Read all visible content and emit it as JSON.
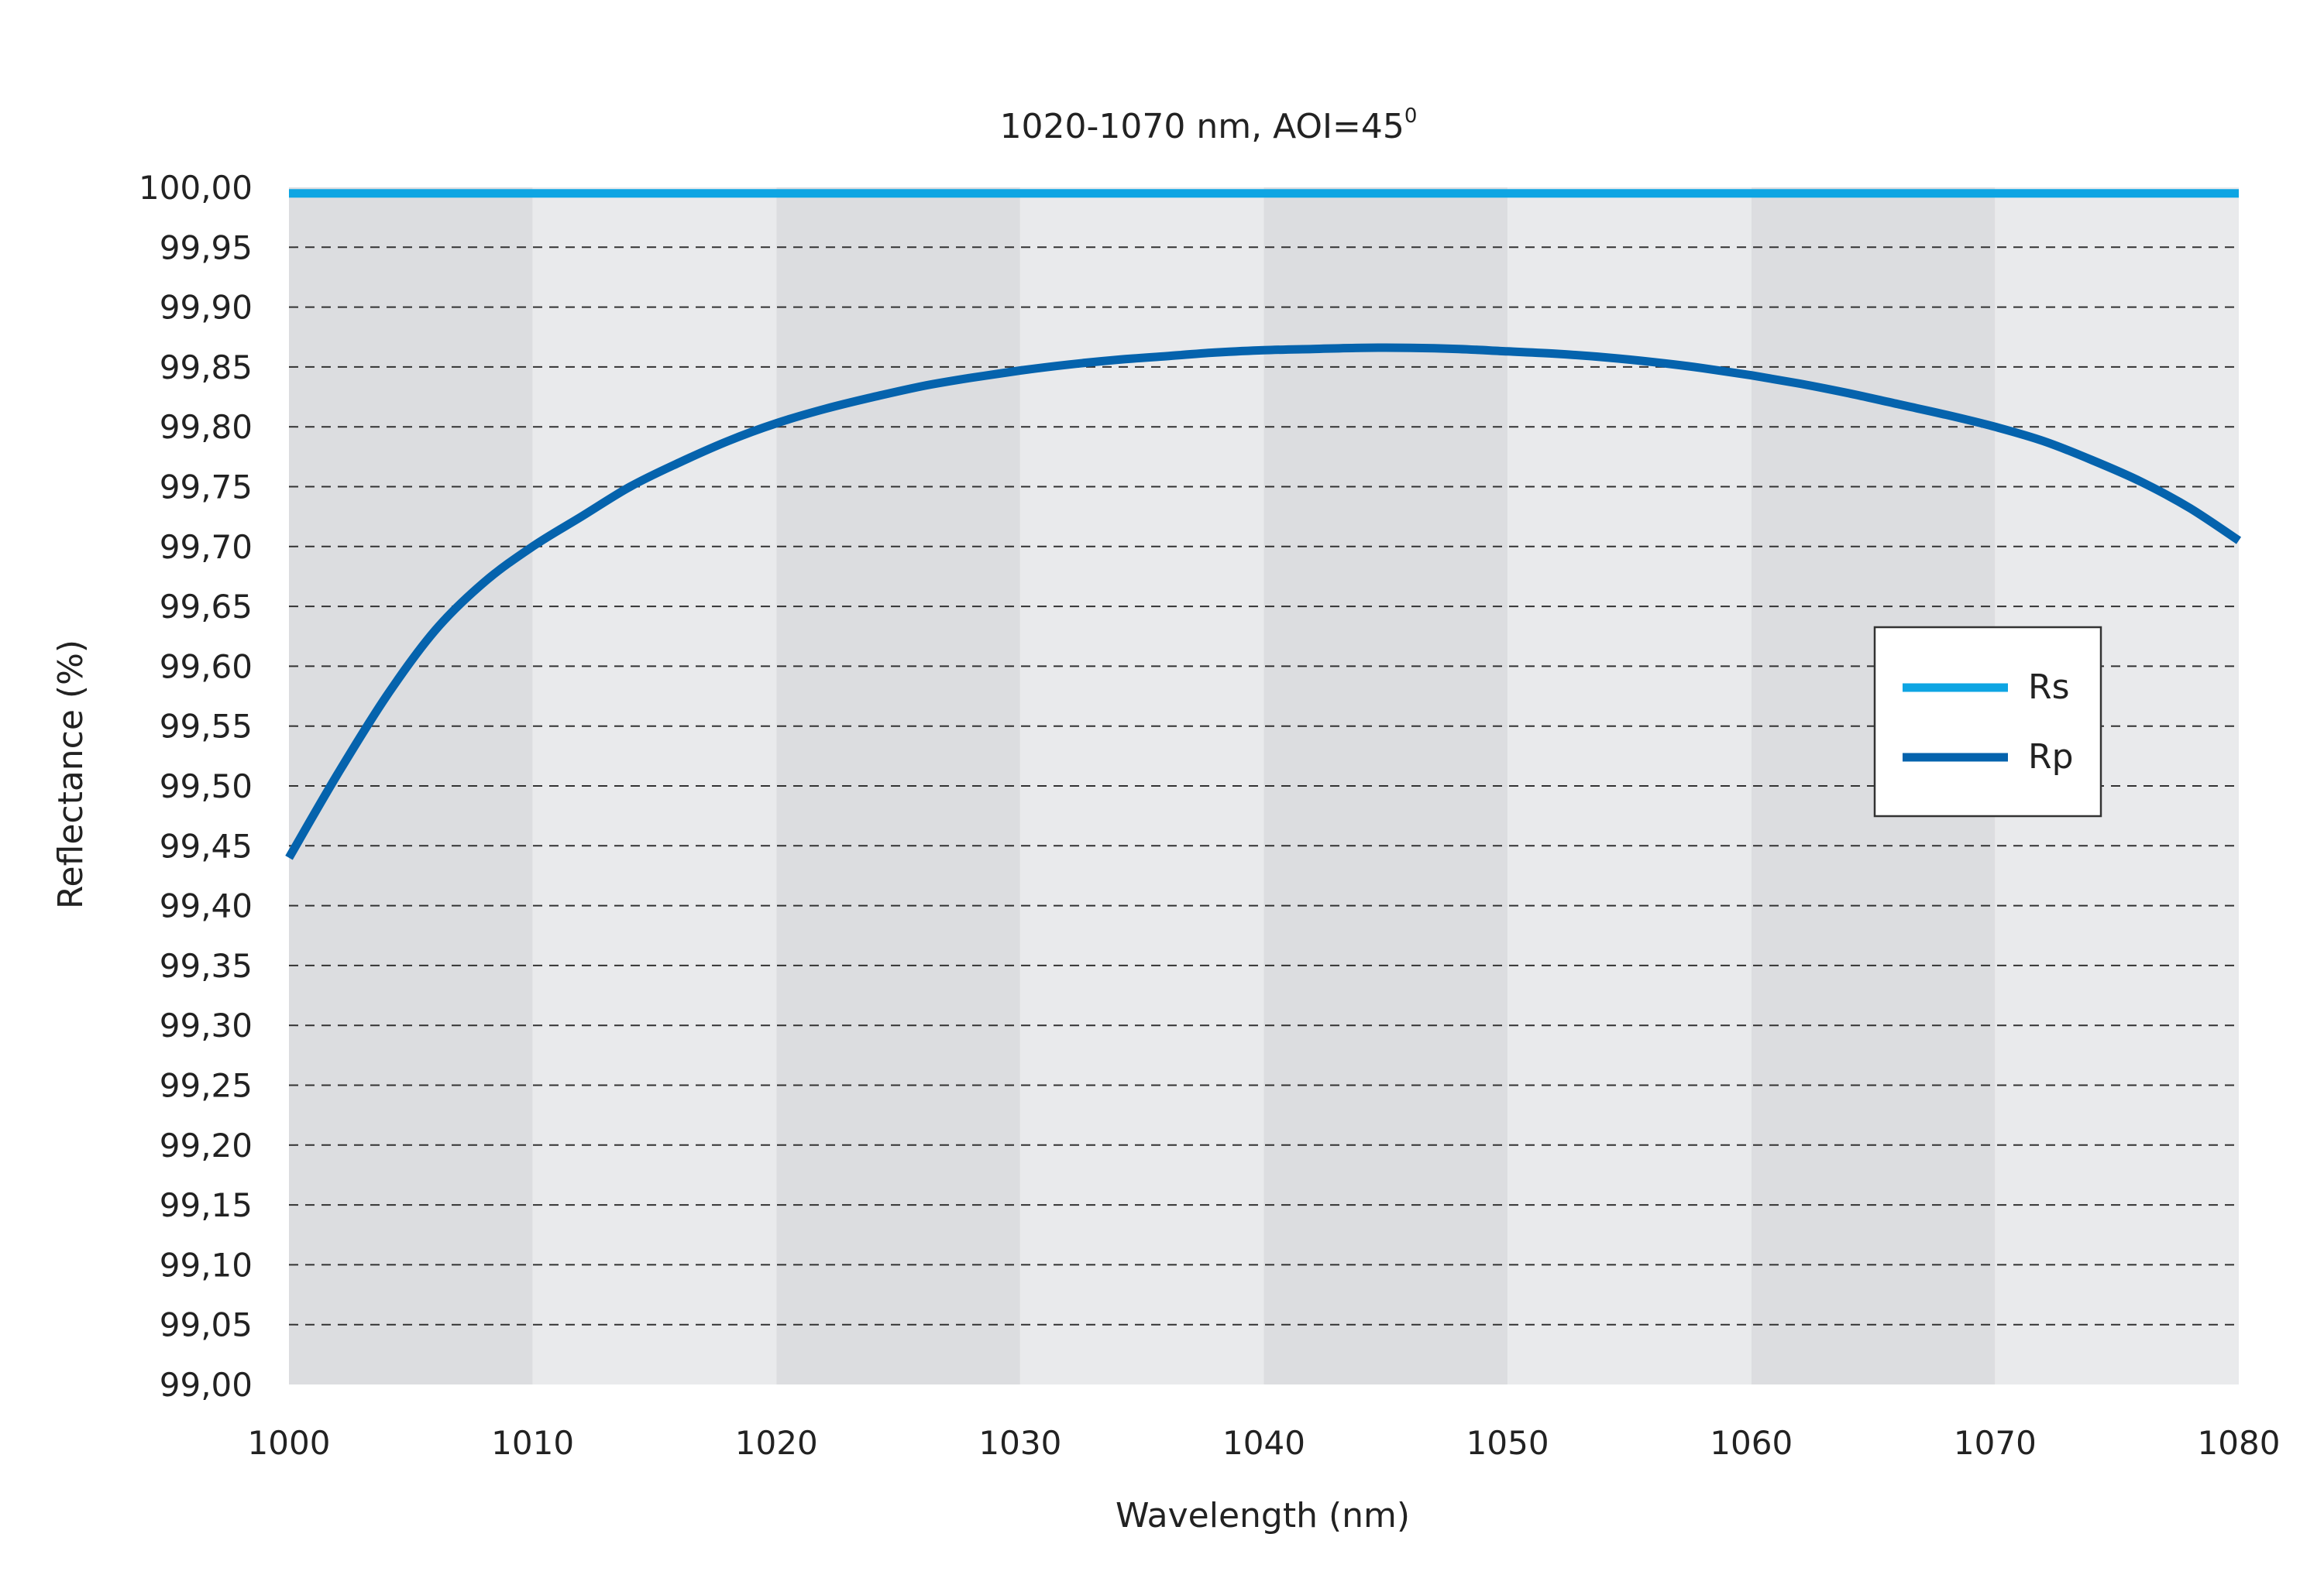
{
  "chart_data": {
    "type": "line",
    "title": "1020-1070 nm, AOI=45",
    "title_superscript": "0",
    "xlabel": "Wavelength (nm)",
    "ylabel": "Reflectance (%)",
    "xlim": [
      1000,
      1080
    ],
    "ylim": [
      99.0,
      100.0
    ],
    "x_ticks": [
      1000,
      1010,
      1020,
      1030,
      1040,
      1050,
      1060,
      1070,
      1080
    ],
    "x_tick_labels": [
      "1000",
      "1010",
      "1020",
      "1030",
      "1040",
      "1050",
      "1060",
      "1070",
      "1080"
    ],
    "y_ticks": [
      99.0,
      99.05,
      99.1,
      99.15,
      99.2,
      99.25,
      99.3,
      99.35,
      99.4,
      99.45,
      99.5,
      99.55,
      99.6,
      99.65,
      99.7,
      99.75,
      99.8,
      99.85,
      99.9,
      99.95,
      100.0
    ],
    "y_tick_labels": [
      "99,00",
      "99,05",
      "99,10",
      "99,15",
      "99,20",
      "99,25",
      "99,30",
      "99,35",
      "99,40",
      "99,45",
      "99,50",
      "99,55",
      "99,60",
      "99,65",
      "99,70",
      "99,75",
      "99,80",
      "99,85",
      "99,90",
      "99,95",
      "100,00"
    ],
    "grid": true,
    "background_bands": true,
    "legend_position": "right",
    "series": [
      {
        "name": "Rs",
        "color": "#0ea5e3",
        "x": [
          1000,
          1080
        ],
        "y": [
          99.995,
          99.995
        ]
      },
      {
        "name": "Rp",
        "color": "#0563ad",
        "x": [
          1000,
          1002,
          1004,
          1006,
          1008,
          1010,
          1012,
          1014,
          1016,
          1018,
          1020,
          1022,
          1024,
          1026,
          1028,
          1030,
          1032,
          1034,
          1036,
          1038,
          1040,
          1042,
          1044,
          1046,
          1048,
          1050,
          1052,
          1054,
          1056,
          1058,
          1060,
          1062,
          1064,
          1066,
          1068,
          1070,
          1072,
          1074,
          1076,
          1078,
          1080
        ],
        "y": [
          99.44,
          99.51,
          99.575,
          99.63,
          99.67,
          99.7,
          99.725,
          99.75,
          99.77,
          99.788,
          99.803,
          99.815,
          99.825,
          99.834,
          99.841,
          99.847,
          99.852,
          99.856,
          99.859,
          99.862,
          99.864,
          99.865,
          99.866,
          99.866,
          99.865,
          99.863,
          99.861,
          99.858,
          99.854,
          99.849,
          99.843,
          99.836,
          99.828,
          99.819,
          99.81,
          99.8,
          99.788,
          99.772,
          99.754,
          99.732,
          99.705
        ]
      }
    ]
  }
}
